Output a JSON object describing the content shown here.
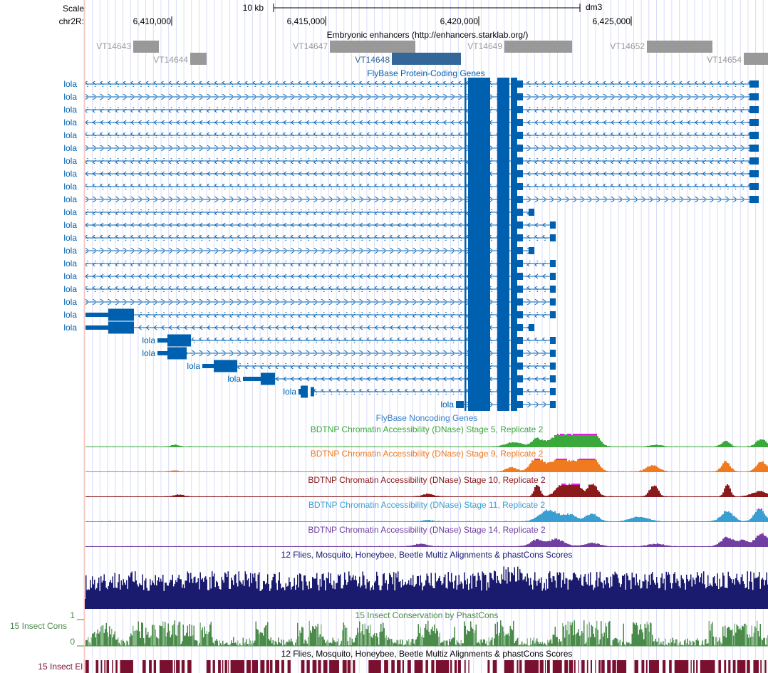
{
  "header": {
    "scale_label": "Scale",
    "scale_bar_label": "10 kb",
    "assembly": "dm3",
    "chrom_label": "chr2R:",
    "ticks": [
      "6,410,000",
      "6,415,000",
      "6,420,000",
      "6,425,000"
    ]
  },
  "enhancers": {
    "title": "Embryonic enhancers (http://enhancers.starklab.org/)",
    "items": [
      "VT14643",
      "VT14644",
      "VT14647",
      "VT14648",
      "VT14649",
      "VT14652",
      "VT14654"
    ],
    "color": "#999999",
    "highlight_color": "#336699"
  },
  "genes": {
    "title": "FlyBase Protein-Coding Genes",
    "color": "#0060b0",
    "labels": [
      "lola",
      "lola",
      "lola",
      "lola",
      "lola",
      "lola",
      "lola",
      "lola",
      "lola",
      "lola",
      "lola",
      "lola",
      "lola",
      "lola",
      "lola",
      "lola",
      "lola",
      "lola",
      "lola",
      "lola",
      "lola",
      "lola",
      "lola",
      "lola",
      "lola",
      "lola"
    ]
  },
  "noncoding": {
    "title": "FlyBase Noncoding Genes"
  },
  "dnase": [
    {
      "title": "BDTNP Chromatin Accessibility (DNase) Stage 5, Replicate 2",
      "color": "#3aa83a"
    },
    {
      "title": "BDTNP Chromatin Accessibility (DNase) Stage 9, Replicate 2",
      "color": "#f07a20"
    },
    {
      "title": "BDTNP Chromatin Accessibility (DNase) Stage 10, Replicate 2",
      "color": "#8b1a1a"
    },
    {
      "title": "BDTNP Chromatin Accessibility (DNase) Stage 11, Replicate 2",
      "color": "#3a9fd0"
    },
    {
      "title": "BDTNP Chromatin Accessibility (DNase) Stage 14, Replicate 2",
      "color": "#7040a0"
    }
  ],
  "multiz": {
    "title": "12 Flies, Mosquito, Honeybee, Beetle Multiz Alignments & phastCons Scores",
    "color": "#1a1a6e"
  },
  "phastcons": {
    "title": "15 Insect Conservation by PhastCons",
    "side_label": "15 Insect Cons",
    "max": "1",
    "min": "0",
    "color": "#4a8a4a"
  },
  "elements": {
    "title": "12 Flies, Mosquito, Honeybee, Beetle Multiz Alignments & phastCons Scores",
    "side_label": "15 Insect El",
    "color": "#7a1030"
  }
}
